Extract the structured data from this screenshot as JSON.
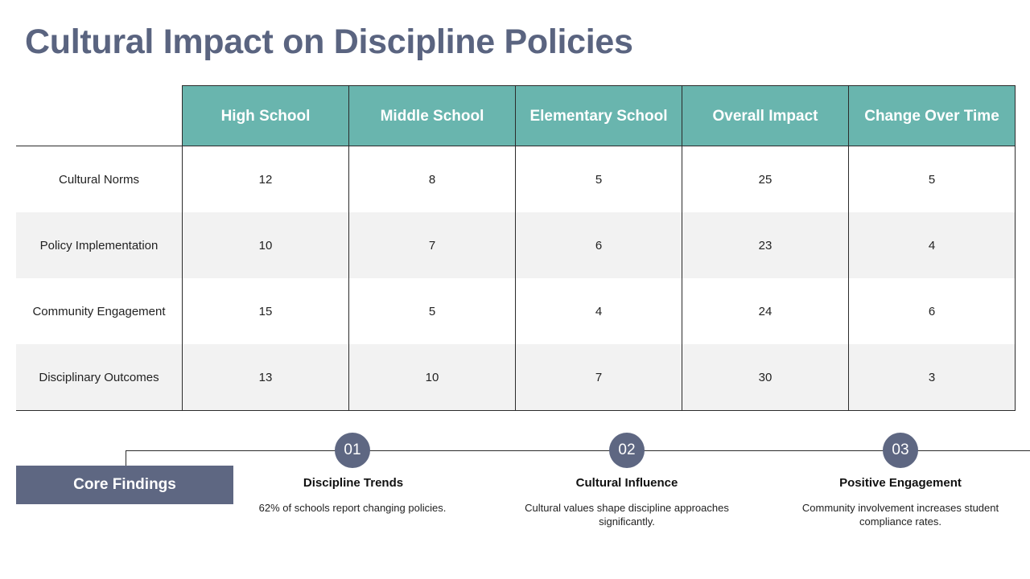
{
  "title": "Cultural Impact on Discipline Policies",
  "table": {
    "columns": [
      "High School",
      "Middle School",
      "Elementary School",
      "Overall Impact",
      "Change Over Time"
    ],
    "rows": [
      {
        "label": "Cultural Norms",
        "values": [
          "12",
          "8",
          "5",
          "25",
          "5"
        ]
      },
      {
        "label": "Policy Implementation",
        "values": [
          "10",
          "7",
          "6",
          "23",
          "4"
        ]
      },
      {
        "label": "Community Engagement",
        "values": [
          "15",
          "5",
          "4",
          "24",
          "6"
        ]
      },
      {
        "label": "Disciplinary Outcomes",
        "values": [
          "13",
          "10",
          "7",
          "30",
          "3"
        ]
      }
    ]
  },
  "core_findings": {
    "label": "Core Findings",
    "items": [
      {
        "number": "01",
        "title": "Discipline Trends",
        "desc": "62% of schools report changing policies."
      },
      {
        "number": "02",
        "title": "Cultural Influence",
        "desc": "Cultural values shape discipline approaches significantly."
      },
      {
        "number": "03",
        "title": "Positive Engagement",
        "desc": "Community involvement increases student compliance rates."
      }
    ]
  },
  "colors": {
    "header": "#69b5ae",
    "accent": "#5e6782",
    "title": "#5a6480",
    "stripe": "#f2f2f2"
  }
}
